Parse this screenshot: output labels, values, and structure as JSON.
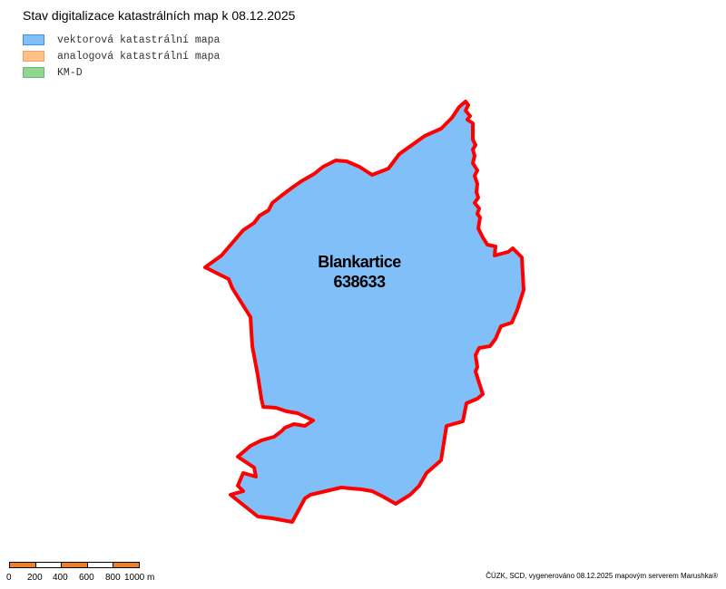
{
  "title": "Stav digitalizace katastrálních map k 08.12.2025",
  "legend": [
    {
      "label": "vektorová katastrální mapa",
      "fill": "#80bff7",
      "stroke": "#3d8ee0"
    },
    {
      "label": "analogová katastrální mapa",
      "fill": "#ffc08a",
      "stroke": "#f0a060"
    },
    {
      "label": "KM-D",
      "fill": "#90d590",
      "stroke": "#6ab86a"
    }
  ],
  "map": {
    "area_name": "Blankartice",
    "area_code": "638633",
    "area_fill": "#80bff7",
    "boundary_color": "#ff0000",
    "status": "vektorová katastrální mapa"
  },
  "scale": {
    "labels": [
      "0",
      "200",
      "400",
      "600",
      "800",
      "1000 m"
    ],
    "colors": [
      "#f07f2a",
      "#ffffff",
      "#f07f2a",
      "#ffffff",
      "#f07f2a"
    ]
  },
  "credits": "ČÚZK, SCD, vygenerováno 08.12.2025 mapovým serverem Marushka®"
}
